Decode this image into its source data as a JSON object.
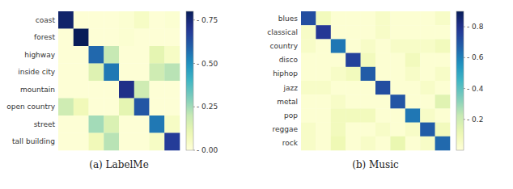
{
  "chart_data": [
    {
      "type": "heatmap",
      "title": "(a) LabelMe",
      "categories": [
        "coast",
        "forest",
        "highway",
        "inside city",
        "mountain",
        "open country",
        "street",
        "tall building"
      ],
      "values": [
        [
          0.77,
          0.01,
          0.01,
          0.01,
          0.02,
          0.05,
          0.01,
          0.02
        ],
        [
          0.01,
          0.8,
          0.01,
          0.01,
          0.02,
          0.01,
          0.01,
          0.01
        ],
        [
          0.01,
          0.01,
          0.58,
          0.2,
          0.01,
          0.01,
          0.12,
          0.05
        ],
        [
          0.01,
          0.01,
          0.14,
          0.55,
          0.01,
          0.01,
          0.18,
          0.22
        ],
        [
          0.01,
          0.01,
          0.01,
          0.01,
          0.72,
          0.18,
          0.01,
          0.01
        ],
        [
          0.18,
          0.08,
          0.01,
          0.01,
          0.12,
          0.62,
          0.01,
          0.01
        ],
        [
          0.01,
          0.01,
          0.25,
          0.15,
          0.01,
          0.01,
          0.55,
          0.05
        ],
        [
          0.01,
          0.01,
          0.08,
          0.22,
          0.01,
          0.01,
          0.05,
          0.68
        ]
      ],
      "color": "YlGnBu",
      "color_range": [
        0.0,
        0.8
      ],
      "color_ticks": [
        {
          "value": 0.0,
          "label": "- 0.00"
        },
        {
          "value": 0.25,
          "label": "- 0.25"
        },
        {
          "value": 0.5,
          "label": "- 0.50"
        },
        {
          "value": 0.75,
          "label": "- 0.75"
        }
      ],
      "tick_labels": "y"
    },
    {
      "type": "heatmap",
      "title": "(b) Music",
      "categories": [
        "blues",
        "classical",
        "country",
        "disco",
        "hiphop",
        "jazz",
        "metal",
        "pop",
        "reggae",
        "rock"
      ],
      "values": [
        [
          0.72,
          0.08,
          0.02,
          0.02,
          0.02,
          0.05,
          0.02,
          0.02,
          0.02,
          0.05
        ],
        [
          0.05,
          0.78,
          0.02,
          0.02,
          0.02,
          0.05,
          0.02,
          0.02,
          0.02,
          0.02
        ],
        [
          0.05,
          0.02,
          0.62,
          0.02,
          0.05,
          0.02,
          0.05,
          0.05,
          0.05,
          0.08
        ],
        [
          0.02,
          0.02,
          0.02,
          0.75,
          0.08,
          0.02,
          0.02,
          0.08,
          0.02,
          0.02
        ],
        [
          0.02,
          0.02,
          0.05,
          0.08,
          0.68,
          0.02,
          0.02,
          0.05,
          0.02,
          0.05
        ],
        [
          0.05,
          0.05,
          0.02,
          0.02,
          0.02,
          0.72,
          0.02,
          0.02,
          0.05,
          0.02
        ],
        [
          0.02,
          0.02,
          0.05,
          0.02,
          0.02,
          0.02,
          0.7,
          0.02,
          0.02,
          0.15
        ],
        [
          0.02,
          0.02,
          0.08,
          0.08,
          0.08,
          0.02,
          0.02,
          0.62,
          0.05,
          0.02
        ],
        [
          0.05,
          0.02,
          0.08,
          0.02,
          0.02,
          0.05,
          0.02,
          0.05,
          0.68,
          0.08
        ],
        [
          0.05,
          0.02,
          0.1,
          0.02,
          0.05,
          0.02,
          0.12,
          0.02,
          0.05,
          0.65
        ]
      ],
      "color": "YlGnBu",
      "color_range": [
        0.0,
        0.9
      ],
      "color_ticks": [
        {
          "value": 0.2,
          "label": "- 0.2"
        },
        {
          "value": 0.4,
          "label": "- 0.4"
        },
        {
          "value": 0.6,
          "label": "- 0.6"
        },
        {
          "value": 0.8,
          "label": "- 0.8"
        }
      ],
      "tick_labels": "y"
    }
  ]
}
